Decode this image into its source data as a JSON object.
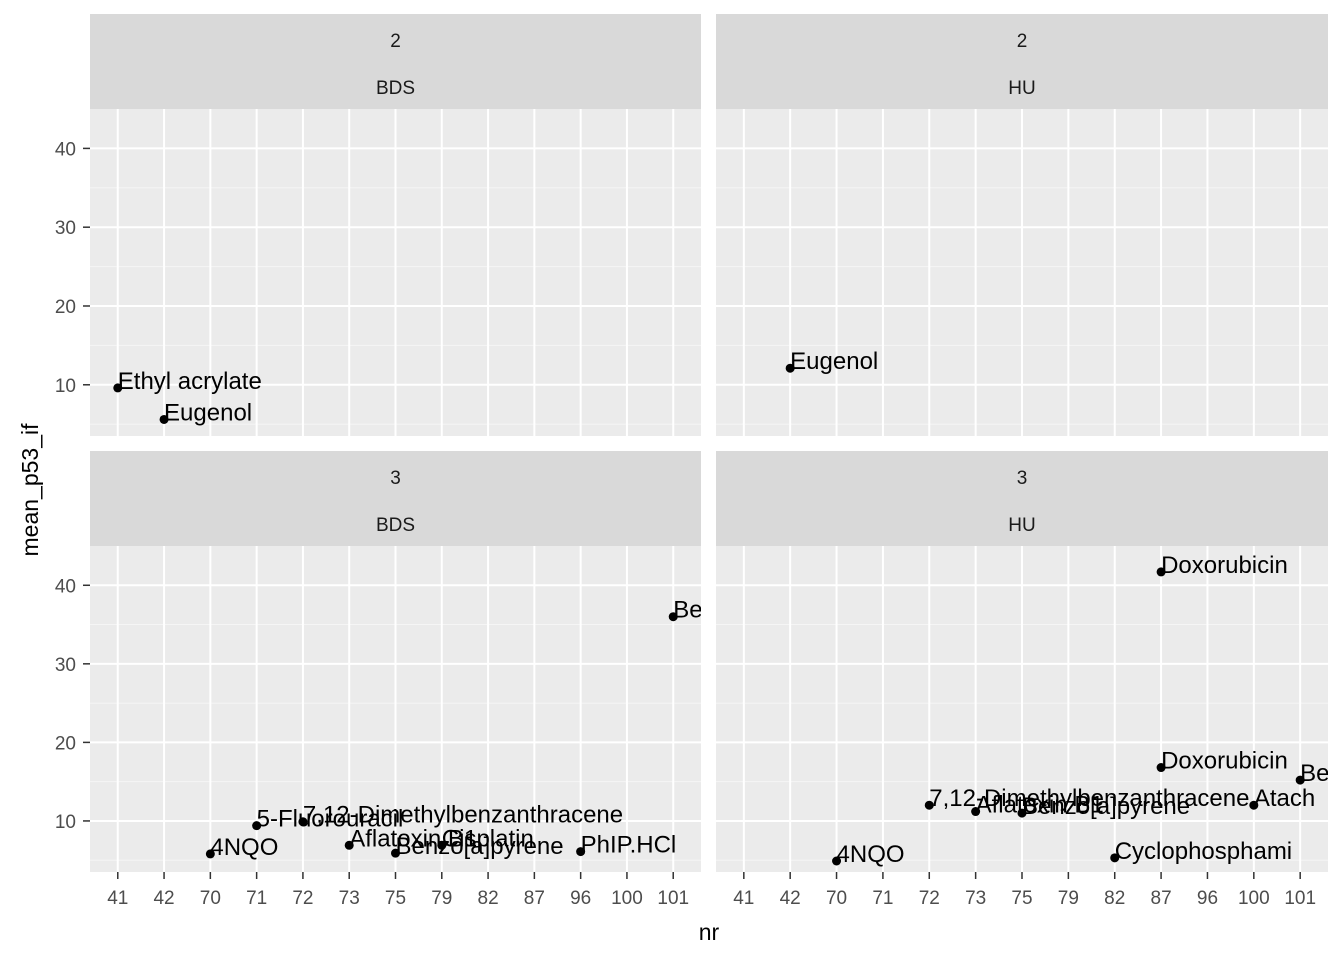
{
  "chart_data": {
    "type": "scatter",
    "xlabel": "nr",
    "ylabel": "mean_p53_if",
    "x_categories": [
      "41",
      "42",
      "70",
      "71",
      "72",
      "73",
      "75",
      "79",
      "82",
      "87",
      "96",
      "100",
      "101"
    ],
    "yticks": [
      10,
      20,
      30,
      40
    ],
    "ylim": [
      3.5,
      45
    ],
    "grid": true,
    "facet_rows": [
      "2",
      "3"
    ],
    "facet_cols": [
      "BDS",
      "HU"
    ],
    "panels": [
      {
        "row": "2",
        "col": "BDS",
        "points": [
          {
            "x": "41",
            "y": 9.6,
            "label": "Ethyl acrylate"
          },
          {
            "x": "42",
            "y": 5.6,
            "label": "Eugenol"
          }
        ]
      },
      {
        "row": "2",
        "col": "HU",
        "points": [
          {
            "x": "42",
            "y": 12.1,
            "label": "Eugenol"
          }
        ]
      },
      {
        "row": "3",
        "col": "BDS",
        "points": [
          {
            "x": "70",
            "y": 5.8,
            "label": "4NQO"
          },
          {
            "x": "71",
            "y": 9.4,
            "label": "5-Fluorouracil"
          },
          {
            "x": "72",
            "y": 9.9,
            "label": "7,12-Dimethylbenzanthracene"
          },
          {
            "x": "73",
            "y": 6.9,
            "label": "Aflatoxin B1"
          },
          {
            "x": "75",
            "y": 5.9,
            "label": "Benzo[a]pyrene"
          },
          {
            "x": "79",
            "y": 6.9,
            "label": "Cisplatin"
          },
          {
            "x": "96",
            "y": 6.1,
            "label": "PhIP.HCl"
          },
          {
            "x": "101",
            "y": 36.0,
            "label": "Be"
          }
        ]
      },
      {
        "row": "3",
        "col": "HU",
        "points": [
          {
            "x": "70",
            "y": 4.9,
            "label": "4NQO"
          },
          {
            "x": "72",
            "y": 12.0,
            "label": "7,12-Dimethylbenzanthracene"
          },
          {
            "x": "73",
            "y": 11.2,
            "label": "Aflatoxin B1"
          },
          {
            "x": "75",
            "y": 11.0,
            "label": "Benzo[a]pyrene"
          },
          {
            "x": "82",
            "y": 5.3,
            "label": "Cyclophosphami"
          },
          {
            "x": "87",
            "y": 41.7,
            "label": "Doxorubicin"
          },
          {
            "x": "87",
            "y": 16.8,
            "label": "Doxorubicin"
          },
          {
            "x": "100",
            "y": 12.0,
            "label": "Atach"
          },
          {
            "x": "101",
            "y": 15.2,
            "label": "Be"
          }
        ]
      }
    ]
  }
}
